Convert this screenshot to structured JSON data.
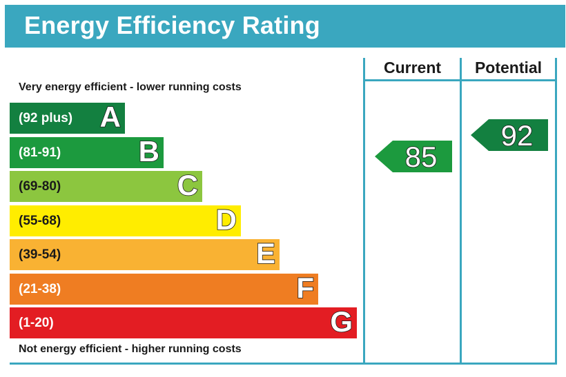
{
  "title": "Energy Efficiency Rating",
  "columns": {
    "current": "Current",
    "potential": "Potential"
  },
  "captions": {
    "top": "Very energy efficient - lower running costs",
    "bottom": "Not energy efficient - higher running costs"
  },
  "bands": [
    {
      "letter": "A",
      "range": "(92 plus)",
      "color": "#138040"
    },
    {
      "letter": "B",
      "range": "(81-91)",
      "color": "#1c9a3e"
    },
    {
      "letter": "C",
      "range": "(69-80)",
      "color": "#8cc63f"
    },
    {
      "letter": "D",
      "range": "(55-68)",
      "color": "#ffed00"
    },
    {
      "letter": "E",
      "range": "(39-54)",
      "color": "#f9b233"
    },
    {
      "letter": "F",
      "range": "(21-38)",
      "color": "#ef7d22"
    },
    {
      "letter": "G",
      "range": "(1-20)",
      "color": "#e31d23"
    }
  ],
  "ratings": {
    "current": {
      "value": "85",
      "band": "B",
      "color": "#1c9a3e"
    },
    "potential": {
      "value": "92",
      "band": "A",
      "color": "#138040"
    }
  }
}
